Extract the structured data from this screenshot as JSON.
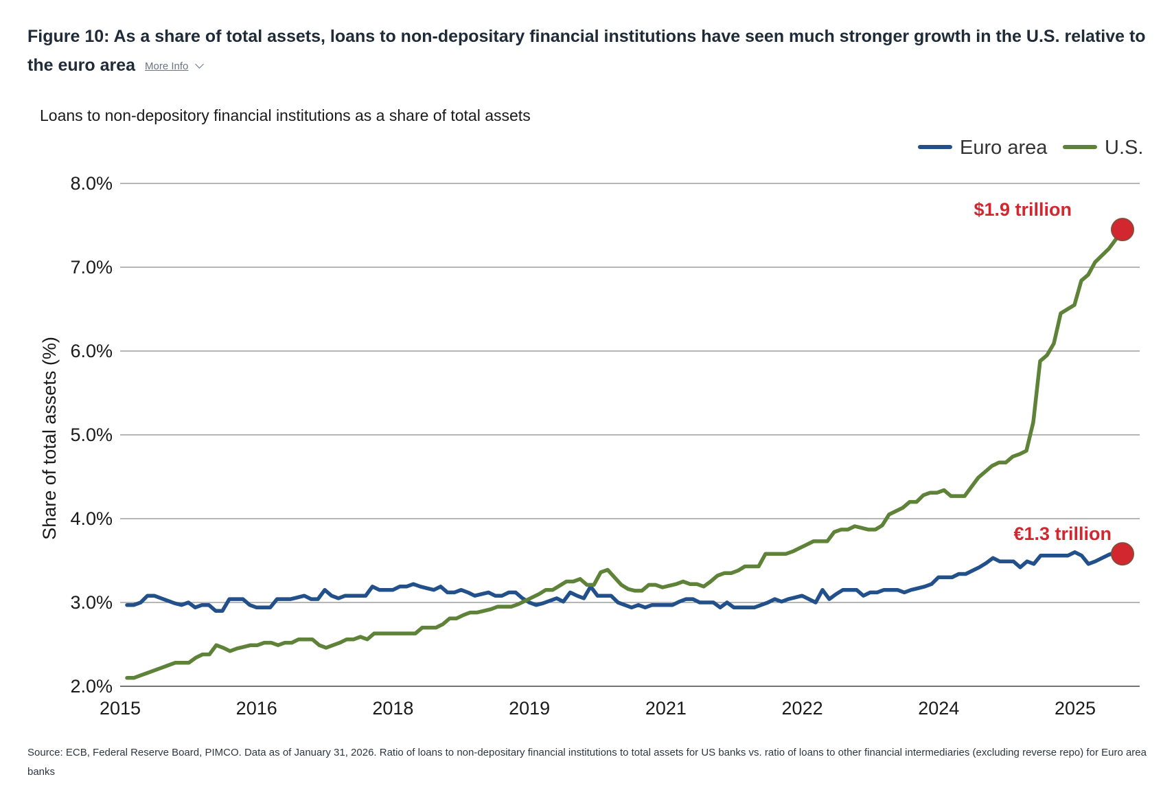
{
  "figure": {
    "title": "Figure 10: As a share of total assets, loans to non-depositary financial institutions have seen much stronger growth in the U.S. relative to the euro area",
    "more_info_label": "More Info",
    "source": "Source: ECB, Federal Reserve Board, PIMCO. Data as of January 31, 2026. Ratio of loans to non-depositary financial institutions to total assets for US banks vs. ratio of loans to other financial intermediaries (excluding reverse repo) for Euro area banks"
  },
  "chart_data": {
    "type": "line",
    "title": "Loans to non-depository financial institutions as a share of total assets",
    "xlabel": "",
    "ylabel": "Share of total assets (%)",
    "x_ticks": [
      "2015",
      "2016",
      "2018",
      "2019",
      "2021",
      "2022",
      "2024",
      "2025"
    ],
    "y_ticks": [
      "2.0%",
      "3.0%",
      "4.0%",
      "5.0%",
      "6.0%",
      "7.0%",
      "8.0%"
    ],
    "ylim": [
      2.0,
      8.0
    ],
    "grid": "horizontal",
    "legend_position": "top-right",
    "series": [
      {
        "name": "Euro area",
        "color": "#22508a",
        "end_label": "€1.3 trillion",
        "values": [
          2.97,
          2.97,
          3.0,
          3.08,
          3.08,
          3.05,
          3.02,
          2.99,
          2.97,
          3.0,
          2.94,
          2.97,
          2.97,
          2.9,
          2.9,
          3.04,
          3.04,
          3.04,
          2.97,
          2.94,
          2.94,
          2.94,
          3.04,
          3.04,
          3.04,
          3.06,
          3.08,
          3.04,
          3.04,
          3.15,
          3.08,
          3.05,
          3.08,
          3.08,
          3.08,
          3.08,
          3.19,
          3.15,
          3.15,
          3.15,
          3.19,
          3.19,
          3.22,
          3.19,
          3.17,
          3.15,
          3.19,
          3.12,
          3.12,
          3.15,
          3.12,
          3.08,
          3.1,
          3.12,
          3.08,
          3.08,
          3.12,
          3.12,
          3.05,
          3.0,
          2.97,
          2.99,
          3.02,
          3.05,
          3.01,
          3.12,
          3.08,
          3.05,
          3.19,
          3.08,
          3.08,
          3.08,
          3.0,
          2.97,
          2.94,
          2.97,
          2.94,
          2.97,
          2.97,
          2.97,
          2.97,
          3.01,
          3.04,
          3.04,
          3.0,
          3.0,
          3.0,
          2.94,
          3.0,
          2.94,
          2.94,
          2.94,
          2.94,
          2.97,
          3.0,
          3.04,
          3.01,
          3.04,
          3.06,
          3.08,
          3.04,
          3.0,
          3.15,
          3.04,
          3.1,
          3.15,
          3.15,
          3.15,
          3.08,
          3.12,
          3.12,
          3.15,
          3.15,
          3.15,
          3.12,
          3.15,
          3.17,
          3.19,
          3.22,
          3.3,
          3.3,
          3.3,
          3.34,
          3.34,
          3.38,
          3.42,
          3.47,
          3.53,
          3.49,
          3.49,
          3.49,
          3.42,
          3.49,
          3.46,
          3.56,
          3.56,
          3.56,
          3.56,
          3.56,
          3.6,
          3.56,
          3.46,
          3.49,
          3.53,
          3.57,
          3.6,
          3.58
        ]
      },
      {
        "name": "U.S.",
        "color": "#5e8238",
        "end_label": "$1.9 trillion",
        "values": [
          2.1,
          2.1,
          2.13,
          2.16,
          2.19,
          2.22,
          2.25,
          2.28,
          2.28,
          2.28,
          2.34,
          2.38,
          2.38,
          2.49,
          2.46,
          2.42,
          2.45,
          2.47,
          2.49,
          2.49,
          2.52,
          2.52,
          2.49,
          2.52,
          2.52,
          2.56,
          2.56,
          2.56,
          2.49,
          2.46,
          2.49,
          2.52,
          2.56,
          2.56,
          2.59,
          2.56,
          2.63,
          2.63,
          2.63,
          2.63,
          2.63,
          2.63,
          2.63,
          2.7,
          2.7,
          2.7,
          2.74,
          2.81,
          2.81,
          2.85,
          2.88,
          2.88,
          2.9,
          2.92,
          2.95,
          2.95,
          2.95,
          2.98,
          3.02,
          3.06,
          3.1,
          3.15,
          3.15,
          3.2,
          3.25,
          3.25,
          3.28,
          3.21,
          3.21,
          3.36,
          3.39,
          3.3,
          3.21,
          3.16,
          3.14,
          3.14,
          3.21,
          3.21,
          3.18,
          3.2,
          3.22,
          3.25,
          3.22,
          3.22,
          3.19,
          3.25,
          3.32,
          3.35,
          3.35,
          3.38,
          3.43,
          3.43,
          3.43,
          3.58,
          3.58,
          3.58,
          3.58,
          3.61,
          3.65,
          3.69,
          3.73,
          3.73,
          3.73,
          3.84,
          3.87,
          3.87,
          3.91,
          3.89,
          3.87,
          3.87,
          3.92,
          4.05,
          4.09,
          4.13,
          4.2,
          4.2,
          4.28,
          4.31,
          4.31,
          4.34,
          4.27,
          4.27,
          4.27,
          4.38,
          4.49,
          4.56,
          4.63,
          4.67,
          4.67,
          4.74,
          4.77,
          4.81,
          5.15,
          5.88,
          5.95,
          6.09,
          6.45,
          6.5,
          6.55,
          6.84,
          6.91,
          7.06,
          7.14,
          7.22,
          7.33,
          7.45
        ]
      }
    ]
  }
}
